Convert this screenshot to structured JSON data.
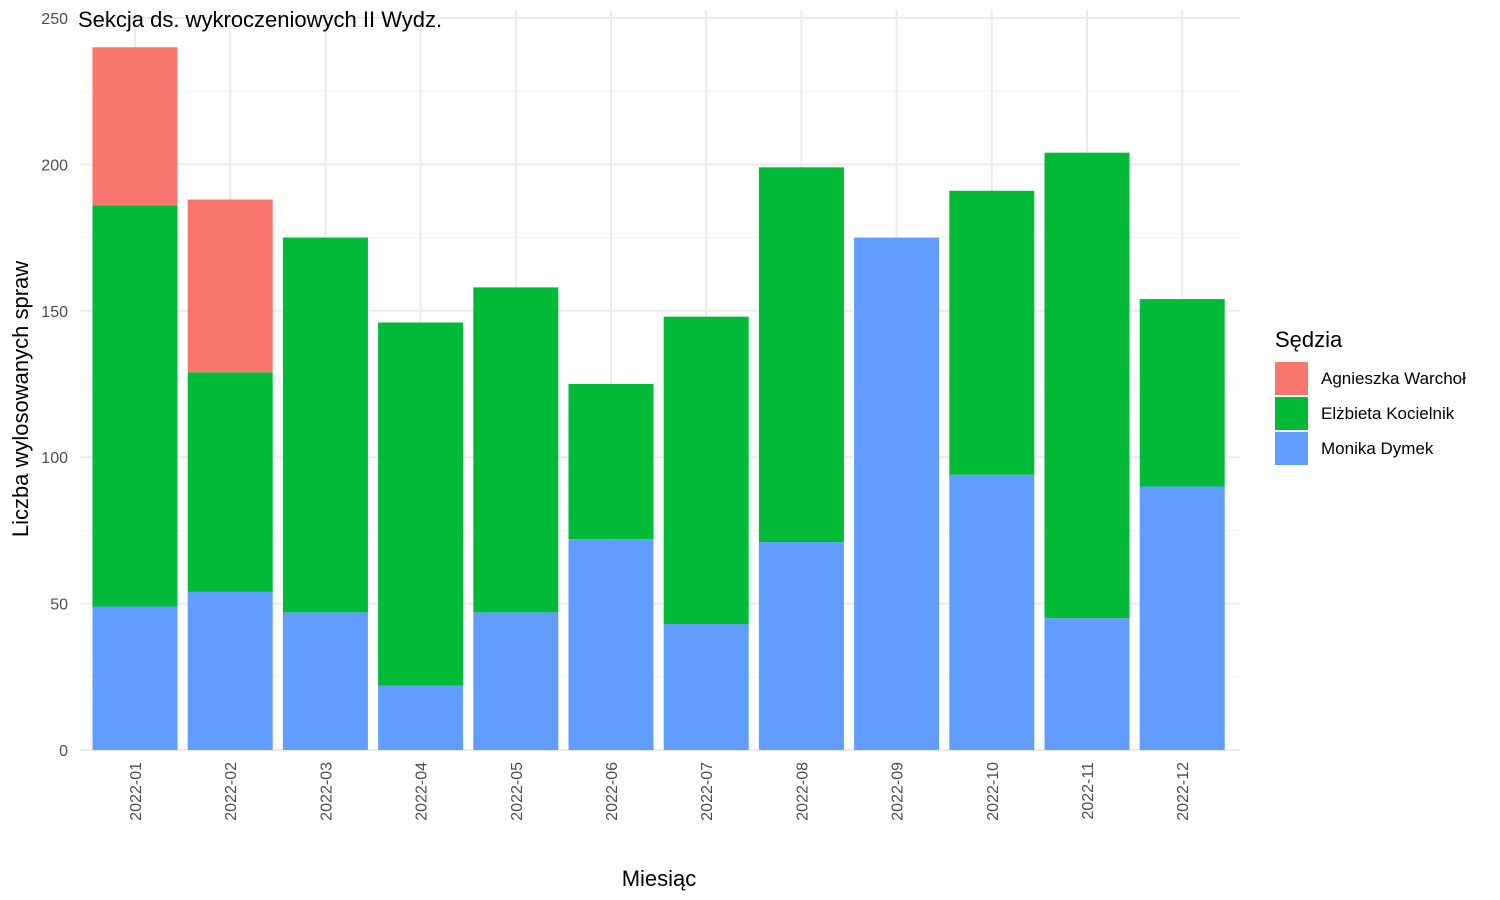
{
  "chart_data": {
    "type": "bar",
    "stacked": true,
    "title": "Sekcja ds. wykroczeniowych II Wydz.",
    "xlabel": "Miesiąc",
    "ylabel": "Liczba wylosowanych spraw",
    "ylim": [
      0,
      250
    ],
    "yticks": [
      0,
      50,
      100,
      150,
      200,
      250
    ],
    "grid": true,
    "legend_title": "Sędzia",
    "legend_position": "right",
    "categories": [
      "2022-01",
      "2022-02",
      "2022-03",
      "2022-04",
      "2022-05",
      "2022-06",
      "2022-07",
      "2022-08",
      "2022-09",
      "2022-10",
      "2022-11",
      "2022-12"
    ],
    "series": [
      {
        "name": "Monika Dymek",
        "color": "#619CFF",
        "values": [
          49,
          54,
          47,
          22,
          47,
          72,
          43,
          71,
          175,
          94,
          45,
          90
        ]
      },
      {
        "name": "Elżbieta Kocielnik",
        "color": "#00BA38",
        "values": [
          137,
          75,
          128,
          124,
          111,
          53,
          105,
          128,
          0,
          97,
          159,
          64
        ]
      },
      {
        "name": "Agnieszka Warchoł",
        "color": "#F8766D",
        "values": [
          54,
          59,
          0,
          0,
          0,
          0,
          0,
          0,
          0,
          0,
          0,
          0
        ]
      }
    ],
    "legend_order": [
      "Agnieszka Warchoł",
      "Elżbieta Kocielnik",
      "Monika Dymek"
    ]
  }
}
